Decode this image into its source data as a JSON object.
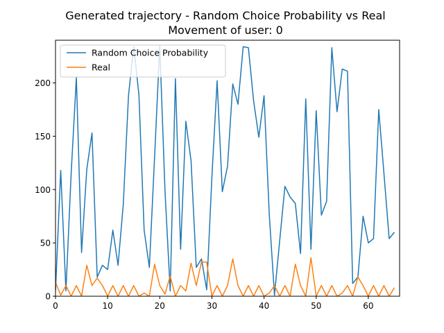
{
  "chart_data": {
    "type": "line",
    "title": "Generated trajectory - Random Choice Probability vs Real",
    "subtitle": "Movement of user: 0",
    "xlabel": "",
    "ylabel": "",
    "xlim": [
      0,
      66
    ],
    "ylim": [
      0,
      240
    ],
    "xticks": [
      0,
      10,
      20,
      30,
      40,
      50,
      60
    ],
    "yticks": [
      0,
      50,
      100,
      150,
      200
    ],
    "grid": false,
    "legend_position": "upper-left",
    "x": [
      0,
      1,
      2,
      3,
      4,
      5,
      6,
      7,
      8,
      9,
      10,
      11,
      12,
      13,
      14,
      15,
      16,
      17,
      18,
      19,
      20,
      21,
      22,
      23,
      24,
      25,
      26,
      27,
      28,
      29,
      30,
      31,
      32,
      33,
      34,
      35,
      36,
      37,
      38,
      39,
      40,
      41,
      42,
      43,
      44,
      45,
      46,
      47,
      48,
      49,
      50,
      51,
      52,
      53,
      54,
      55,
      56,
      57,
      58,
      59,
      60,
      61,
      62,
      63,
      64,
      65
    ],
    "series": [
      {
        "name": "Random Choice Probability",
        "color": "#1f77b4",
        "values": [
          5,
          118,
          5,
          115,
          205,
          41,
          119,
          153,
          18,
          29,
          25,
          62,
          29,
          86,
          188,
          234,
          189,
          62,
          27,
          130,
          235,
          99,
          5,
          204,
          44,
          164,
          127,
          27,
          35,
          6,
          112,
          202,
          98,
          122,
          199,
          180,
          234,
          233,
          183,
          149,
          188,
          77,
          1,
          52,
          103,
          93,
          87,
          40,
          185,
          44,
          174,
          76,
          89,
          233,
          173,
          213,
          211,
          12,
          18,
          75,
          50,
          54,
          175,
          115,
          54,
          60
        ]
      },
      {
        "name": "Real",
        "color": "#ff7f0e",
        "values": [
          13,
          1,
          10,
          0,
          10,
          0,
          29,
          10,
          17,
          10,
          0,
          10,
          0,
          10,
          0,
          10,
          0,
          3,
          0,
          30,
          10,
          2,
          19,
          0,
          10,
          5,
          31,
          10,
          32,
          32,
          0,
          10,
          0,
          10,
          35,
          10,
          0,
          10,
          0,
          10,
          0,
          3,
          10,
          0,
          10,
          0,
          30,
          10,
          0,
          36,
          0,
          10,
          0,
          10,
          0,
          3,
          10,
          0,
          18,
          10,
          0,
          10,
          0,
          10,
          0,
          8
        ]
      }
    ]
  }
}
